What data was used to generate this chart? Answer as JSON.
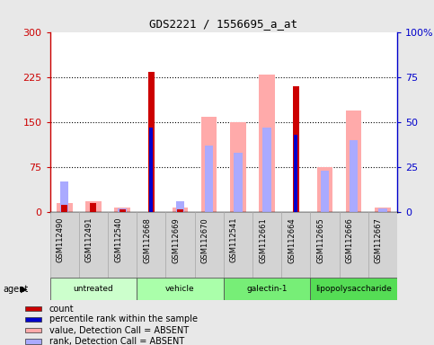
{
  "title": "GDS2221 / 1556695_a_at",
  "samples": [
    "GSM112490",
    "GSM112491",
    "GSM112540",
    "GSM112668",
    "GSM112669",
    "GSM112670",
    "GSM112541",
    "GSM112661",
    "GSM112664",
    "GSM112665",
    "GSM112666",
    "GSM112667"
  ],
  "groups": [
    {
      "label": "untreated",
      "indices": [
        0,
        1,
        2
      ],
      "color": "#ccffcc"
    },
    {
      "label": "vehicle",
      "indices": [
        3,
        4,
        5
      ],
      "color": "#aaffaa"
    },
    {
      "label": "galectin-1",
      "indices": [
        6,
        7,
        8
      ],
      "color": "#77ee77"
    },
    {
      "label": "lipopolysaccharide",
      "indices": [
        9,
        10,
        11
      ],
      "color": "#55dd55"
    }
  ],
  "count_values": [
    12,
    15,
    5,
    235,
    5,
    null,
    null,
    null,
    210,
    null,
    null,
    null
  ],
  "percentile_rank": [
    null,
    null,
    null,
    47,
    null,
    null,
    null,
    null,
    43,
    null,
    null,
    null
  ],
  "value_absent": [
    15,
    18,
    8,
    null,
    8,
    160,
    150,
    230,
    null,
    75,
    170,
    8
  ],
  "rank_absent": [
    17,
    null,
    2,
    null,
    6,
    37,
    33,
    47,
    null,
    23,
    40,
    2
  ],
  "left_ylim": [
    0,
    300
  ],
  "right_ylim": [
    0,
    100
  ],
  "left_yticks": [
    0,
    75,
    150,
    225,
    300
  ],
  "right_yticks": [
    0,
    25,
    50,
    75,
    100
  ],
  "left_yticklabels": [
    "0",
    "75",
    "150",
    "225",
    "300"
  ],
  "right_yticklabels": [
    "0",
    "25",
    "50",
    "75",
    "100%"
  ],
  "count_color": "#cc0000",
  "percentile_color": "#0000cc",
  "value_absent_color": "#ffaaaa",
  "rank_absent_color": "#aaaaff",
  "background_color": "#e8e8e8",
  "plot_bg": "#ffffff",
  "legend_items": [
    {
      "label": "count",
      "color": "#cc0000"
    },
    {
      "label": "percentile rank within the sample",
      "color": "#0000cc"
    },
    {
      "label": "value, Detection Call = ABSENT",
      "color": "#ffaaaa"
    },
    {
      "label": "rank, Detection Call = ABSENT",
      "color": "#aaaaff"
    }
  ]
}
